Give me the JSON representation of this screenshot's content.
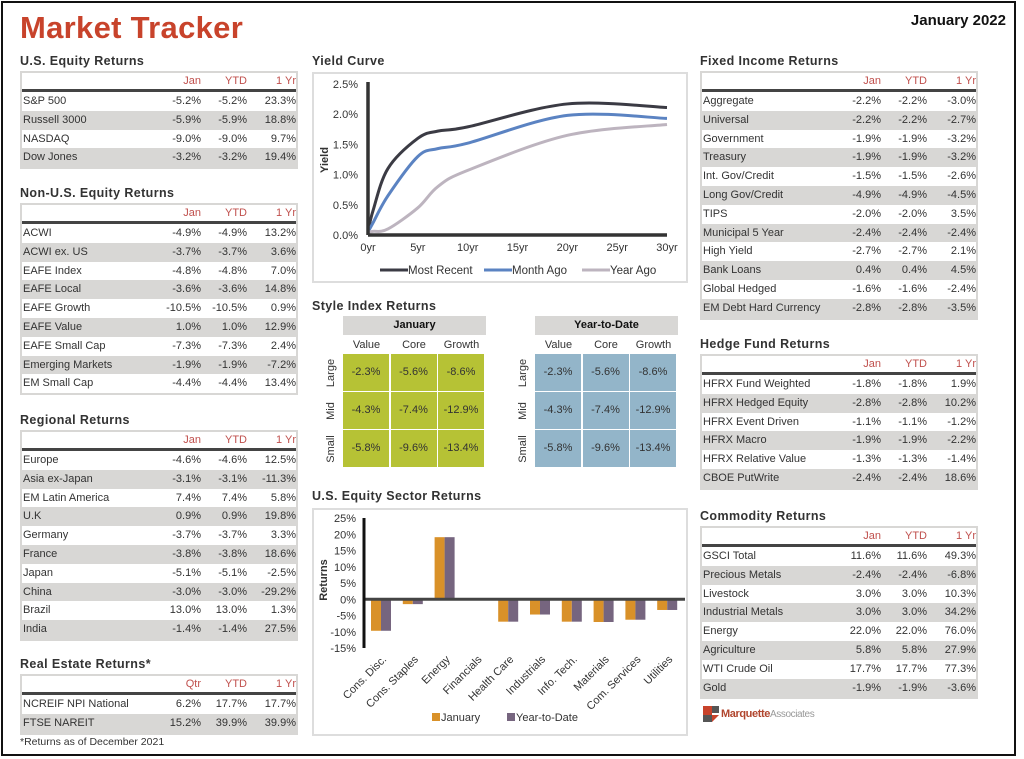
{
  "header": {
    "title": "Market Tracker",
    "date": "January 2022"
  },
  "us_equity": {
    "title": "U.S. Equity Returns",
    "columns": [
      "Jan",
      "YTD",
      "1 Yr"
    ],
    "rows": [
      {
        "name": "S&P 500",
        "values": [
          "-5.2%",
          "-5.2%",
          "23.3%"
        ]
      },
      {
        "name": "Russell 3000",
        "values": [
          "-5.9%",
          "-5.9%",
          "18.8%"
        ]
      },
      {
        "name": "NASDAQ",
        "values": [
          "-9.0%",
          "-9.0%",
          "9.7%"
        ]
      },
      {
        "name": "Dow Jones",
        "values": [
          "-3.2%",
          "-3.2%",
          "19.4%"
        ]
      }
    ]
  },
  "non_us_equity": {
    "title": "Non-U.S. Equity Returns",
    "columns": [
      "Jan",
      "YTD",
      "1 Yr"
    ],
    "rows": [
      {
        "name": "ACWI",
        "values": [
          "-4.9%",
          "-4.9%",
          "13.2%"
        ]
      },
      {
        "name": "ACWI ex. US",
        "values": [
          "-3.7%",
          "-3.7%",
          "3.6%"
        ]
      },
      {
        "name": "EAFE Index",
        "values": [
          "-4.8%",
          "-4.8%",
          "7.0%"
        ]
      },
      {
        "name": "EAFE Local",
        "values": [
          "-3.6%",
          "-3.6%",
          "14.8%"
        ]
      },
      {
        "name": "EAFE Growth",
        "values": [
          "-10.5%",
          "-10.5%",
          "0.9%"
        ]
      },
      {
        "name": "EAFE Value",
        "values": [
          "1.0%",
          "1.0%",
          "12.9%"
        ]
      },
      {
        "name": "EAFE Small Cap",
        "values": [
          "-7.3%",
          "-7.3%",
          "2.4%"
        ]
      },
      {
        "name": "Emerging Markets",
        "values": [
          "-1.9%",
          "-1.9%",
          "-7.2%"
        ]
      },
      {
        "name": "EM Small Cap",
        "values": [
          "-4.4%",
          "-4.4%",
          "13.4%"
        ]
      }
    ]
  },
  "regional": {
    "title": "Regional Returns",
    "columns": [
      "Jan",
      "YTD",
      "1 Yr"
    ],
    "rows": [
      {
        "name": "Europe",
        "values": [
          "-4.6%",
          "-4.6%",
          "12.5%"
        ]
      },
      {
        "name": "Asia ex-Japan",
        "values": [
          "-3.1%",
          "-3.1%",
          "-11.3%"
        ]
      },
      {
        "name": "EM Latin America",
        "values": [
          "7.4%",
          "7.4%",
          "5.8%"
        ]
      },
      {
        "name": "U.K",
        "values": [
          "0.9%",
          "0.9%",
          "19.8%"
        ]
      },
      {
        "name": "Germany",
        "values": [
          "-3.7%",
          "-3.7%",
          "3.3%"
        ]
      },
      {
        "name": "France",
        "values": [
          "-3.8%",
          "-3.8%",
          "18.6%"
        ]
      },
      {
        "name": "Japan",
        "values": [
          "-5.1%",
          "-5.1%",
          "-2.5%"
        ]
      },
      {
        "name": "China",
        "values": [
          "-3.0%",
          "-3.0%",
          "-29.2%"
        ]
      },
      {
        "name": "Brazil",
        "values": [
          "13.0%",
          "13.0%",
          "1.3%"
        ]
      },
      {
        "name": "India",
        "values": [
          "-1.4%",
          "-1.4%",
          "27.5%"
        ]
      }
    ]
  },
  "real_estate": {
    "title": "Real Estate Returns*",
    "columns": [
      "Qtr",
      "YTD",
      "1 Yr"
    ],
    "rows": [
      {
        "name": "NCREIF NPI National",
        "values": [
          "6.2%",
          "17.7%",
          "17.7%"
        ]
      },
      {
        "name": "FTSE NAREIT",
        "values": [
          "15.2%",
          "39.9%",
          "39.9%"
        ]
      }
    ],
    "footnote": "*Returns as of December 2021"
  },
  "fixed_income": {
    "title": "Fixed Income Returns",
    "columns": [
      "Jan",
      "YTD",
      "1 Yr"
    ],
    "rows": [
      {
        "name": "Aggregate",
        "values": [
          "-2.2%",
          "-2.2%",
          "-3.0%"
        ]
      },
      {
        "name": "Universal",
        "values": [
          "-2.2%",
          "-2.2%",
          "-2.7%"
        ]
      },
      {
        "name": "Government",
        "values": [
          "-1.9%",
          "-1.9%",
          "-3.2%"
        ]
      },
      {
        "name": "Treasury",
        "values": [
          "-1.9%",
          "-1.9%",
          "-3.2%"
        ]
      },
      {
        "name": "Int. Gov/Credit",
        "values": [
          "-1.5%",
          "-1.5%",
          "-2.6%"
        ]
      },
      {
        "name": "Long Gov/Credit",
        "values": [
          "-4.9%",
          "-4.9%",
          "-4.5%"
        ]
      },
      {
        "name": "TIPS",
        "values": [
          "-2.0%",
          "-2.0%",
          "3.5%"
        ]
      },
      {
        "name": "Municipal 5 Year",
        "values": [
          "-2.4%",
          "-2.4%",
          "-2.4%"
        ]
      },
      {
        "name": "High Yield",
        "values": [
          "-2.7%",
          "-2.7%",
          "2.1%"
        ]
      },
      {
        "name": "Bank Loans",
        "values": [
          "0.4%",
          "0.4%",
          "4.5%"
        ]
      },
      {
        "name": "Global Hedged",
        "values": [
          "-1.6%",
          "-1.6%",
          "-2.4%"
        ]
      },
      {
        "name": "EM Debt Hard Currency",
        "values": [
          "-2.8%",
          "-2.8%",
          "-3.5%"
        ]
      }
    ]
  },
  "hedge_fund": {
    "title": "Hedge Fund Returns",
    "columns": [
      "Jan",
      "YTD",
      "1 Yr"
    ],
    "rows": [
      {
        "name": "HFRX Fund Weighted",
        "values": [
          "-1.8%",
          "-1.8%",
          "1.9%"
        ]
      },
      {
        "name": "HFRX Hedged Equity",
        "values": [
          "-2.8%",
          "-2.8%",
          "10.2%"
        ]
      },
      {
        "name": "HFRX Event Driven",
        "values": [
          "-1.1%",
          "-1.1%",
          "-1.2%"
        ]
      },
      {
        "name": "HFRX Macro",
        "values": [
          "-1.9%",
          "-1.9%",
          "-2.2%"
        ]
      },
      {
        "name": "HFRX Relative Value",
        "values": [
          "-1.3%",
          "-1.3%",
          "-1.4%"
        ]
      },
      {
        "name": "CBOE PutWrite",
        "values": [
          "-2.4%",
          "-2.4%",
          "18.6%"
        ]
      }
    ]
  },
  "commodity": {
    "title": "Commodity Returns",
    "columns": [
      "Jan",
      "YTD",
      "1 Yr"
    ],
    "rows": [
      {
        "name": "GSCI Total",
        "values": [
          "11.6%",
          "11.6%",
          "49.3%"
        ]
      },
      {
        "name": "Precious Metals",
        "values": [
          "-2.4%",
          "-2.4%",
          "-6.8%"
        ]
      },
      {
        "name": "Livestock",
        "values": [
          "3.0%",
          "3.0%",
          "10.3%"
        ]
      },
      {
        "name": "Industrial Metals",
        "values": [
          "3.0%",
          "3.0%",
          "34.2%"
        ]
      },
      {
        "name": "Energy",
        "values": [
          "22.0%",
          "22.0%",
          "76.0%"
        ]
      },
      {
        "name": "Agriculture",
        "values": [
          "5.8%",
          "5.8%",
          "27.9%"
        ]
      },
      {
        "name": "WTI Crude Oil",
        "values": [
          "17.7%",
          "17.7%",
          "77.3%"
        ]
      },
      {
        "name": "Gold",
        "values": [
          "-1.9%",
          "-1.9%",
          "-3.6%"
        ]
      }
    ]
  },
  "style_index": {
    "title": "Style Index Returns",
    "columns": [
      "Value",
      "Core",
      "Growth"
    ],
    "rows": [
      "Large",
      "Mid",
      "Small"
    ],
    "panels": [
      {
        "label": "January",
        "color": "#b6c235",
        "values": [
          [
            "-2.3%",
            "-5.6%",
            "-8.6%"
          ],
          [
            "-4.3%",
            "-7.4%",
            "-12.9%"
          ],
          [
            "-5.8%",
            "-9.6%",
            "-13.4%"
          ]
        ]
      },
      {
        "label": "Year-to-Date",
        "color": "#93b5c9",
        "values": [
          [
            "-2.3%",
            "-5.6%",
            "-8.6%"
          ],
          [
            "-4.3%",
            "-7.4%",
            "-12.9%"
          ],
          [
            "-5.8%",
            "-9.6%",
            "-13.4%"
          ]
        ]
      }
    ]
  },
  "logo": {
    "bold": "Marquette",
    "light": "Associates"
  },
  "chart_data": [
    {
      "type": "line",
      "title": "Yield Curve",
      "xlabel": "",
      "ylabel": "Yield",
      "x": [
        0,
        0.5,
        2,
        5,
        7,
        10,
        20,
        30
      ],
      "xlim": [
        0,
        30
      ],
      "ylim": [
        0,
        2.5
      ],
      "xticks": [
        "0yr",
        "5yr",
        "10yr",
        "15yr",
        "20yr",
        "25yr",
        "30yr"
      ],
      "yticks": [
        "0.0%",
        "0.5%",
        "1.0%",
        "1.5%",
        "2.0%",
        "2.5%"
      ],
      "series": [
        {
          "name": "Most Recent",
          "color": "#3b3b44",
          "values": [
            0.05,
            0.4,
            1.1,
            1.6,
            1.72,
            1.79,
            2.17,
            2.11
          ]
        },
        {
          "name": "Month Ago",
          "color": "#5b83c2",
          "values": [
            0.05,
            0.2,
            0.65,
            1.3,
            1.43,
            1.52,
            1.98,
            1.93
          ]
        },
        {
          "name": "Year Ago",
          "color": "#bdb4bf",
          "values": [
            0.05,
            0.06,
            0.1,
            0.45,
            0.8,
            1.07,
            1.65,
            1.83
          ]
        }
      ],
      "legend": "bottom"
    },
    {
      "type": "bar",
      "title": "U.S. Equity Sector Returns",
      "xlabel": "",
      "ylabel": "Returns",
      "ylim": [
        -15,
        25
      ],
      "yticks": [
        "25%",
        "20%",
        "15%",
        "10%",
        "5%",
        "0%",
        "-5%",
        "-10%",
        "-15%"
      ],
      "categories": [
        "Cons. Disc.",
        "Cons. Staples",
        "Energy",
        "Financials",
        "Health Care",
        "Industrials",
        "Info. Tech.",
        "Materials",
        "Com. Services",
        "Utilities"
      ],
      "series": [
        {
          "name": "January",
          "color": "#d99129",
          "values": [
            -9.7,
            -1.5,
            19.1,
            0.0,
            -6.9,
            -4.7,
            -6.9,
            -7.0,
            -6.3,
            -3.3
          ]
        },
        {
          "name": "Year-to-Date",
          "color": "#76657f",
          "values": [
            -9.7,
            -1.5,
            19.1,
            0.0,
            -6.9,
            -4.7,
            -6.9,
            -7.0,
            -6.3,
            -3.3
          ]
        }
      ],
      "legend": "bottom"
    }
  ]
}
